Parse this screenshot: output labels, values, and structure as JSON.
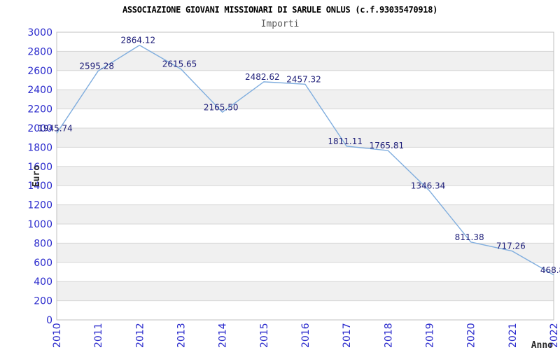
{
  "header": {
    "title": "ASSOCIAZIONE GIOVANI MISSIONARI DI SARULE ONLUS (c.f.93035470918)",
    "subtitle": "Importi"
  },
  "chart_data": {
    "type": "line",
    "title": "ASSOCIAZIONE GIOVANI MISSIONARI DI SARULE ONLUS (c.f.93035470918)",
    "subtitle": "Importi",
    "xlabel": "Anno",
    "ylabel": "Euro",
    "categories": [
      "2010",
      "2011",
      "2012",
      "2013",
      "2014",
      "2015",
      "2016",
      "2017",
      "2018",
      "2019",
      "2020",
      "2021",
      "2022"
    ],
    "series": [
      {
        "name": "Importi",
        "values": [
          1945.74,
          2595.28,
          2864.12,
          2615.65,
          2165.5,
          2482.62,
          2457.32,
          1811.11,
          1765.81,
          1346.34,
          811.38,
          717.26,
          468.8
        ]
      }
    ],
    "point_labels": [
      "1945.74",
      "2595.28",
      "2864.12",
      "2615.65",
      "2165.50",
      "2482.62",
      "2457.32",
      "1811.11",
      "1765.81",
      "1346.34",
      "811.38",
      "717.26",
      "468.8"
    ],
    "ylim": [
      0,
      3000
    ],
    "ytick_step": 200,
    "yticks": [
      0,
      200,
      400,
      600,
      800,
      1000,
      1200,
      1400,
      1600,
      1800,
      2000,
      2200,
      2400,
      2600,
      2800,
      3000
    ],
    "grid": "horizontal-with-alternating-bands",
    "legend": "none",
    "colors": {
      "line": "#7fadde",
      "point_label": "#20207a",
      "tick_label": "#2929cc",
      "band": "#f0f0f0",
      "grid": "#d6d6d6",
      "border": "#c0c0c0",
      "title": "#000000",
      "subtitle": "#595959",
      "axis_label": "#2b2b2b",
      "background": "#ffffff"
    }
  }
}
